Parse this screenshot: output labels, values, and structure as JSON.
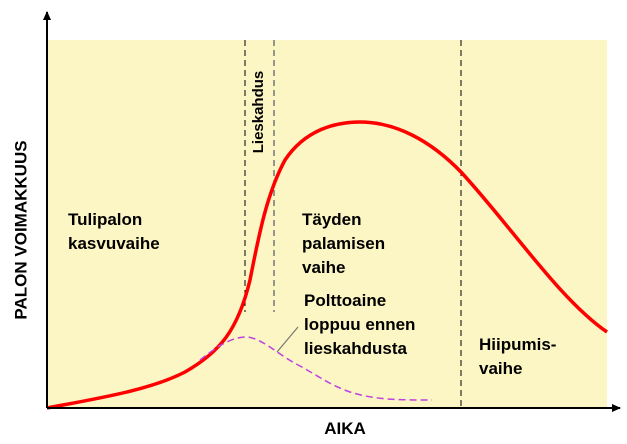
{
  "axes": {
    "y_label": "PALON VOIMAKKUUS",
    "x_label": "AIKA"
  },
  "flashover_label": "Lieskahdus",
  "regions": [
    {
      "lines": [
        "Tulipalon",
        "kasvuvaihe"
      ]
    },
    {
      "lines": [
        "Täyden",
        "palamisen",
        "vaihe"
      ]
    },
    {
      "lines": [
        "Polttoaine",
        "loppuu ennen",
        "lieskahdusta"
      ]
    },
    {
      "lines": [
        "Hiipumis-",
        "vaihe"
      ]
    }
  ]
}
